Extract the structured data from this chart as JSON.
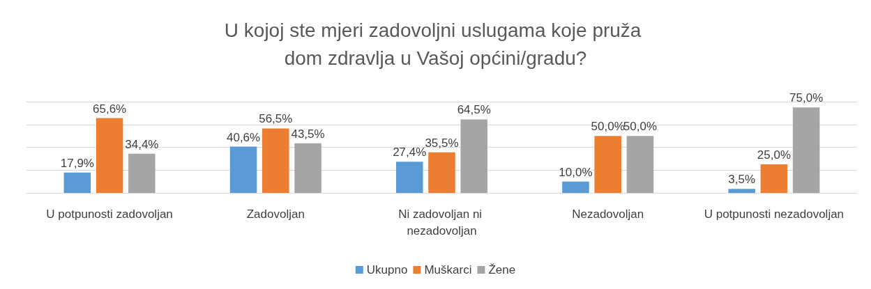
{
  "chart_data": {
    "type": "bar",
    "title": "U kojoj ste mjeri zadovoljni uslugama koje pruža dom zdravlja u Vašoj općini/gradu?",
    "categories": [
      "U potpunosti zadovoljan",
      "Zadovoljan",
      "Ni zadovoljan ni nezadovoljan",
      "Nezadovoljan",
      "U potpunosti nezadovoljan"
    ],
    "series": [
      {
        "name": "Ukupno",
        "color": "#5b9bd5",
        "values": [
          17.9,
          40.6,
          27.4,
          10.0,
          3.5
        ],
        "value_labels": [
          "17,9%",
          "40,6%",
          "27,4%",
          "10,0%",
          "3,5%"
        ]
      },
      {
        "name": "Muškarci",
        "color": "#ed7d31",
        "values": [
          65.6,
          56.5,
          35.5,
          50.0,
          25.0
        ],
        "value_labels": [
          "65,6%",
          "56,5%",
          "35,5%",
          "50,0%",
          "25,0%"
        ]
      },
      {
        "name": "Žene",
        "color": "#a5a5a5",
        "values": [
          34.4,
          43.5,
          64.5,
          50.0,
          75.0
        ],
        "value_labels": [
          "34,4%",
          "43,5%",
          "64,5%",
          "50,0%",
          "75,0%"
        ]
      }
    ],
    "ylim": [
      0,
      80
    ],
    "yticks": [
      {
        "value": 0,
        "label": null
      },
      {
        "value": 20,
        "label": null
      },
      {
        "value": 40,
        "label": null
      },
      {
        "value": 60,
        "label": null
      },
      {
        "value": 80,
        "label": null
      }
    ],
    "tick_labels": "x",
    "grid": "y",
    "legend": "bottom"
  }
}
